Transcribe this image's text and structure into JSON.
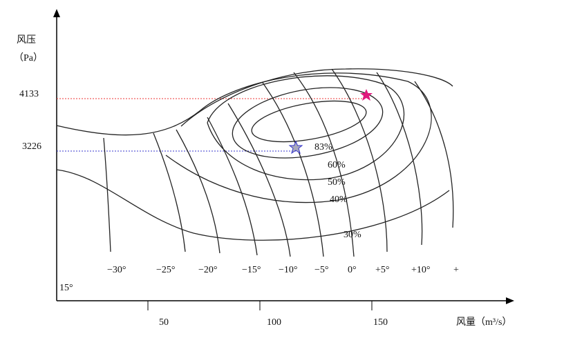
{
  "y_axis": {
    "title": "风压",
    "unit": "（Pa）",
    "ticks": [
      "4133",
      "3226"
    ]
  },
  "x_axis": {
    "title": "风量（m³/s）",
    "ticks": [
      "50",
      "100",
      "150"
    ]
  },
  "blade_angles": [
    "−30°",
    "−25°",
    "−20°",
    "−15°",
    "−10°",
    "−5°",
    "0°",
    "+5°",
    "+10°",
    "+"
  ],
  "wrap_text": "15°",
  "efficiency_labels": [
    "83%",
    "60%",
    "50%",
    "40%",
    "30%"
  ]
}
